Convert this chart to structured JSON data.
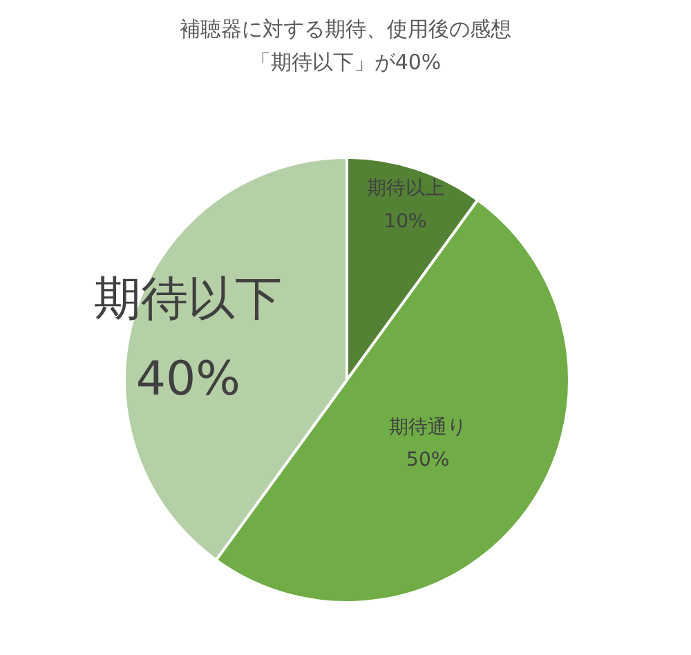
{
  "chart_data": {
    "type": "pie",
    "title": "補聴器に対する期待、使用後の感想",
    "subtitle": "「期待以下」が40%",
    "categories": [
      "期待以上",
      "期待通り",
      "期待以下"
    ],
    "values": [
      10,
      50,
      40
    ],
    "colors": [
      "#548235",
      "#70ad47",
      "#b5d0a6"
    ],
    "value_labels": [
      "10%",
      "50%",
      "40%"
    ]
  }
}
